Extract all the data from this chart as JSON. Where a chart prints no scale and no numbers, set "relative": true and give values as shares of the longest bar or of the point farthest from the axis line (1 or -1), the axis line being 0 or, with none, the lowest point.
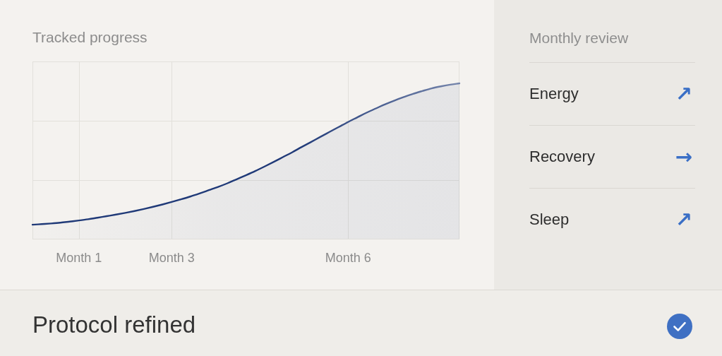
{
  "chart_data": [
    {
      "type": "area",
      "title": "Tracked progress",
      "categories": [
        null,
        null,
        null,
        null,
        null,
        "Month 1",
        null,
        null,
        null,
        null,
        null,
        null,
        null,
        null,
        null,
        "Month 3",
        null,
        null,
        null,
        null,
        null,
        null,
        null,
        null,
        null,
        null,
        null,
        null,
        null,
        null,
        null,
        null,
        null,
        null,
        "Month 6",
        null,
        null,
        null,
        null,
        null,
        null,
        null,
        null,
        null,
        null,
        null,
        null
      ],
      "series": [
        {
          "color": "#203a78",
          "values": [
            0.092,
            0.096,
            0.1,
            0.105,
            0.112,
            0.119,
            0.127,
            0.137,
            0.147,
            0.157,
            0.168,
            0.18,
            0.193,
            0.207,
            0.222,
            0.238,
            0.255,
            0.273,
            0.293,
            0.314,
            0.335,
            0.358,
            0.384,
            0.41,
            0.437,
            0.466,
            0.496,
            0.527,
            0.558,
            0.591,
            0.623,
            0.656,
            0.688,
            0.72,
            0.752,
            0.782,
            0.812,
            0.839,
            0.866,
            0.89,
            0.912,
            0.933,
            0.951,
            0.968,
            0.981,
            0.992,
            1.0
          ]
        }
      ],
      "relative": true,
      "grid": true,
      "marker": "none"
    },
    {
      "type": "other",
      "title": "Monthly review",
      "categories": [
        "Energy",
        "Recovery",
        "Sleep"
      ],
      "annotations": [
        "↗",
        "→",
        "↗"
      ]
    },
    {
      "type": "other",
      "title": "Protocol refined"
    }
  ]
}
